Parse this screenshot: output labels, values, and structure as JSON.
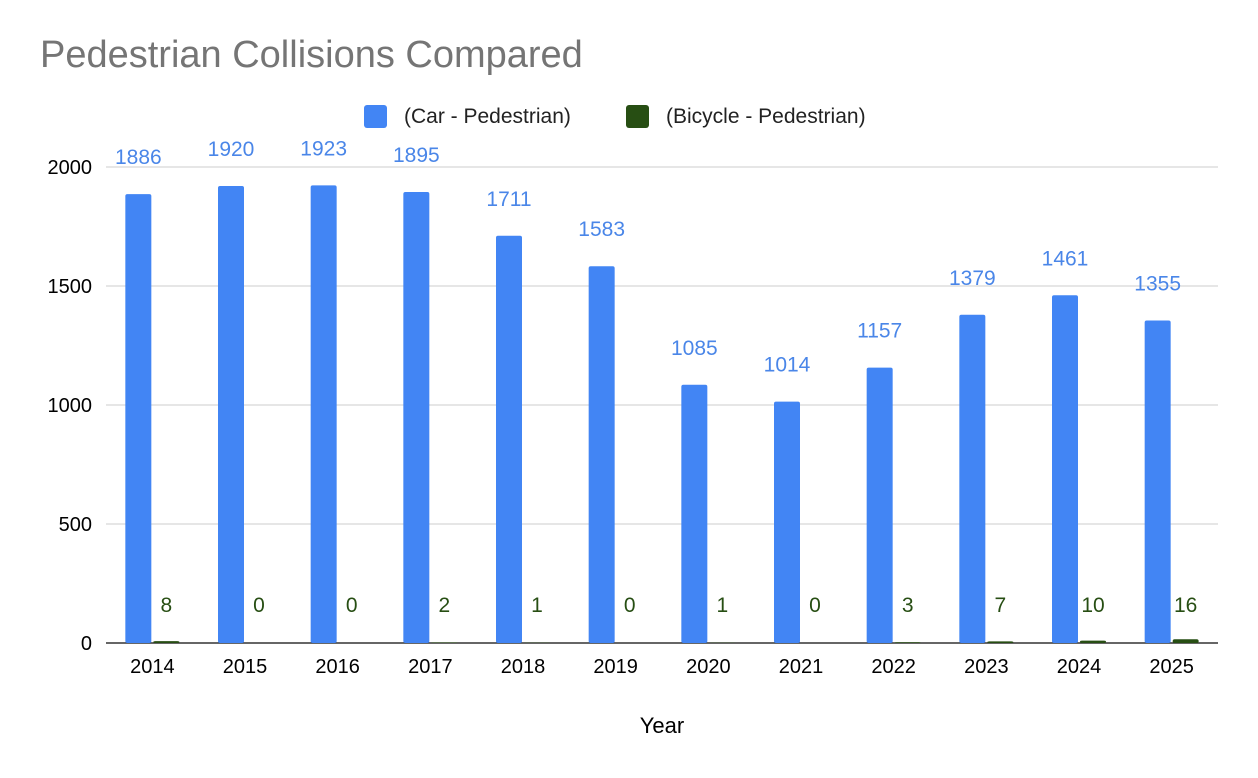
{
  "chart_data": {
    "type": "bar",
    "title": "Pedestrian Collisions Compared",
    "xlabel": "Year",
    "ylabel": "",
    "ylim": [
      0,
      2000
    ],
    "yticks": [
      0,
      500,
      1000,
      1500,
      2000
    ],
    "grid": true,
    "legend_position": "top",
    "categories": [
      "2014",
      "2015",
      "2016",
      "2017",
      "2018",
      "2019",
      "2020",
      "2021",
      "2022",
      "2023",
      "2024",
      "2025"
    ],
    "series": [
      {
        "name": "(Car - Pedestrian)",
        "color": "#4285f4",
        "label_color": "#4a86e8",
        "values": [
          1886,
          1920,
          1923,
          1895,
          1711,
          1583,
          1085,
          1014,
          1157,
          1379,
          1461,
          1355
        ]
      },
      {
        "name": "(Bicycle - Pedestrian)",
        "color": "#274e13",
        "label_color": "#274e13",
        "values": [
          8,
          0,
          0,
          2,
          1,
          0,
          1,
          0,
          3,
          7,
          10,
          16
        ]
      }
    ]
  }
}
